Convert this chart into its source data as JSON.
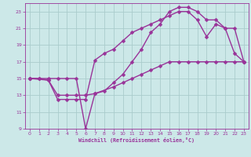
{
  "xlabel": "Windchill (Refroidissement éolien,°C)",
  "bg_color": "#cce8e8",
  "grid_color": "#aacccc",
  "line_color": "#993399",
  "xlim": [
    -0.5,
    23.5
  ],
  "ylim": [
    9,
    24
  ],
  "xticks": [
    0,
    1,
    2,
    3,
    4,
    5,
    6,
    7,
    8,
    9,
    10,
    11,
    12,
    13,
    14,
    15,
    16,
    17,
    18,
    19,
    20,
    21,
    22,
    23
  ],
  "yticks": [
    9,
    11,
    13,
    15,
    17,
    19,
    21,
    23
  ],
  "line1_x": [
    0,
    1,
    2,
    3,
    4,
    5,
    6,
    7,
    8,
    9,
    10,
    11,
    12,
    13,
    14,
    15,
    16,
    17,
    18,
    19,
    20,
    21,
    22,
    23
  ],
  "line1_y": [
    15,
    15,
    15,
    15,
    15,
    15,
    9,
    13.2,
    13.5,
    14.5,
    15.5,
    17,
    18.5,
    20.5,
    21.5,
    23,
    23.5,
    23.5,
    23,
    22,
    22,
    21,
    21,
    17
  ],
  "line2_x": [
    0,
    1,
    2,
    3,
    4,
    5,
    6,
    7,
    8,
    9,
    10,
    11,
    12,
    13,
    14,
    15,
    16,
    17,
    18,
    19,
    20,
    21,
    22,
    23
  ],
  "line2_y": [
    15,
    15,
    14.8,
    12.5,
    12.5,
    12.5,
    12.5,
    17.2,
    18,
    18.5,
    19.5,
    20.5,
    21,
    21.5,
    22,
    22.5,
    23,
    23,
    22,
    20,
    21.5,
    21,
    18,
    17
  ],
  "line3_x": [
    0,
    2,
    3,
    4,
    5,
    6,
    7,
    9,
    10,
    11,
    12,
    13,
    14,
    15,
    16,
    17,
    18,
    19,
    20,
    21,
    22,
    23
  ],
  "line3_y": [
    15,
    14.8,
    13,
    13,
    13,
    13,
    13.2,
    14,
    14.5,
    15,
    15.5,
    16,
    16.5,
    17,
    17,
    17,
    17,
    17,
    17,
    17,
    17,
    17
  ],
  "marker": "D",
  "markersize": 2.5,
  "linewidth": 1.0
}
